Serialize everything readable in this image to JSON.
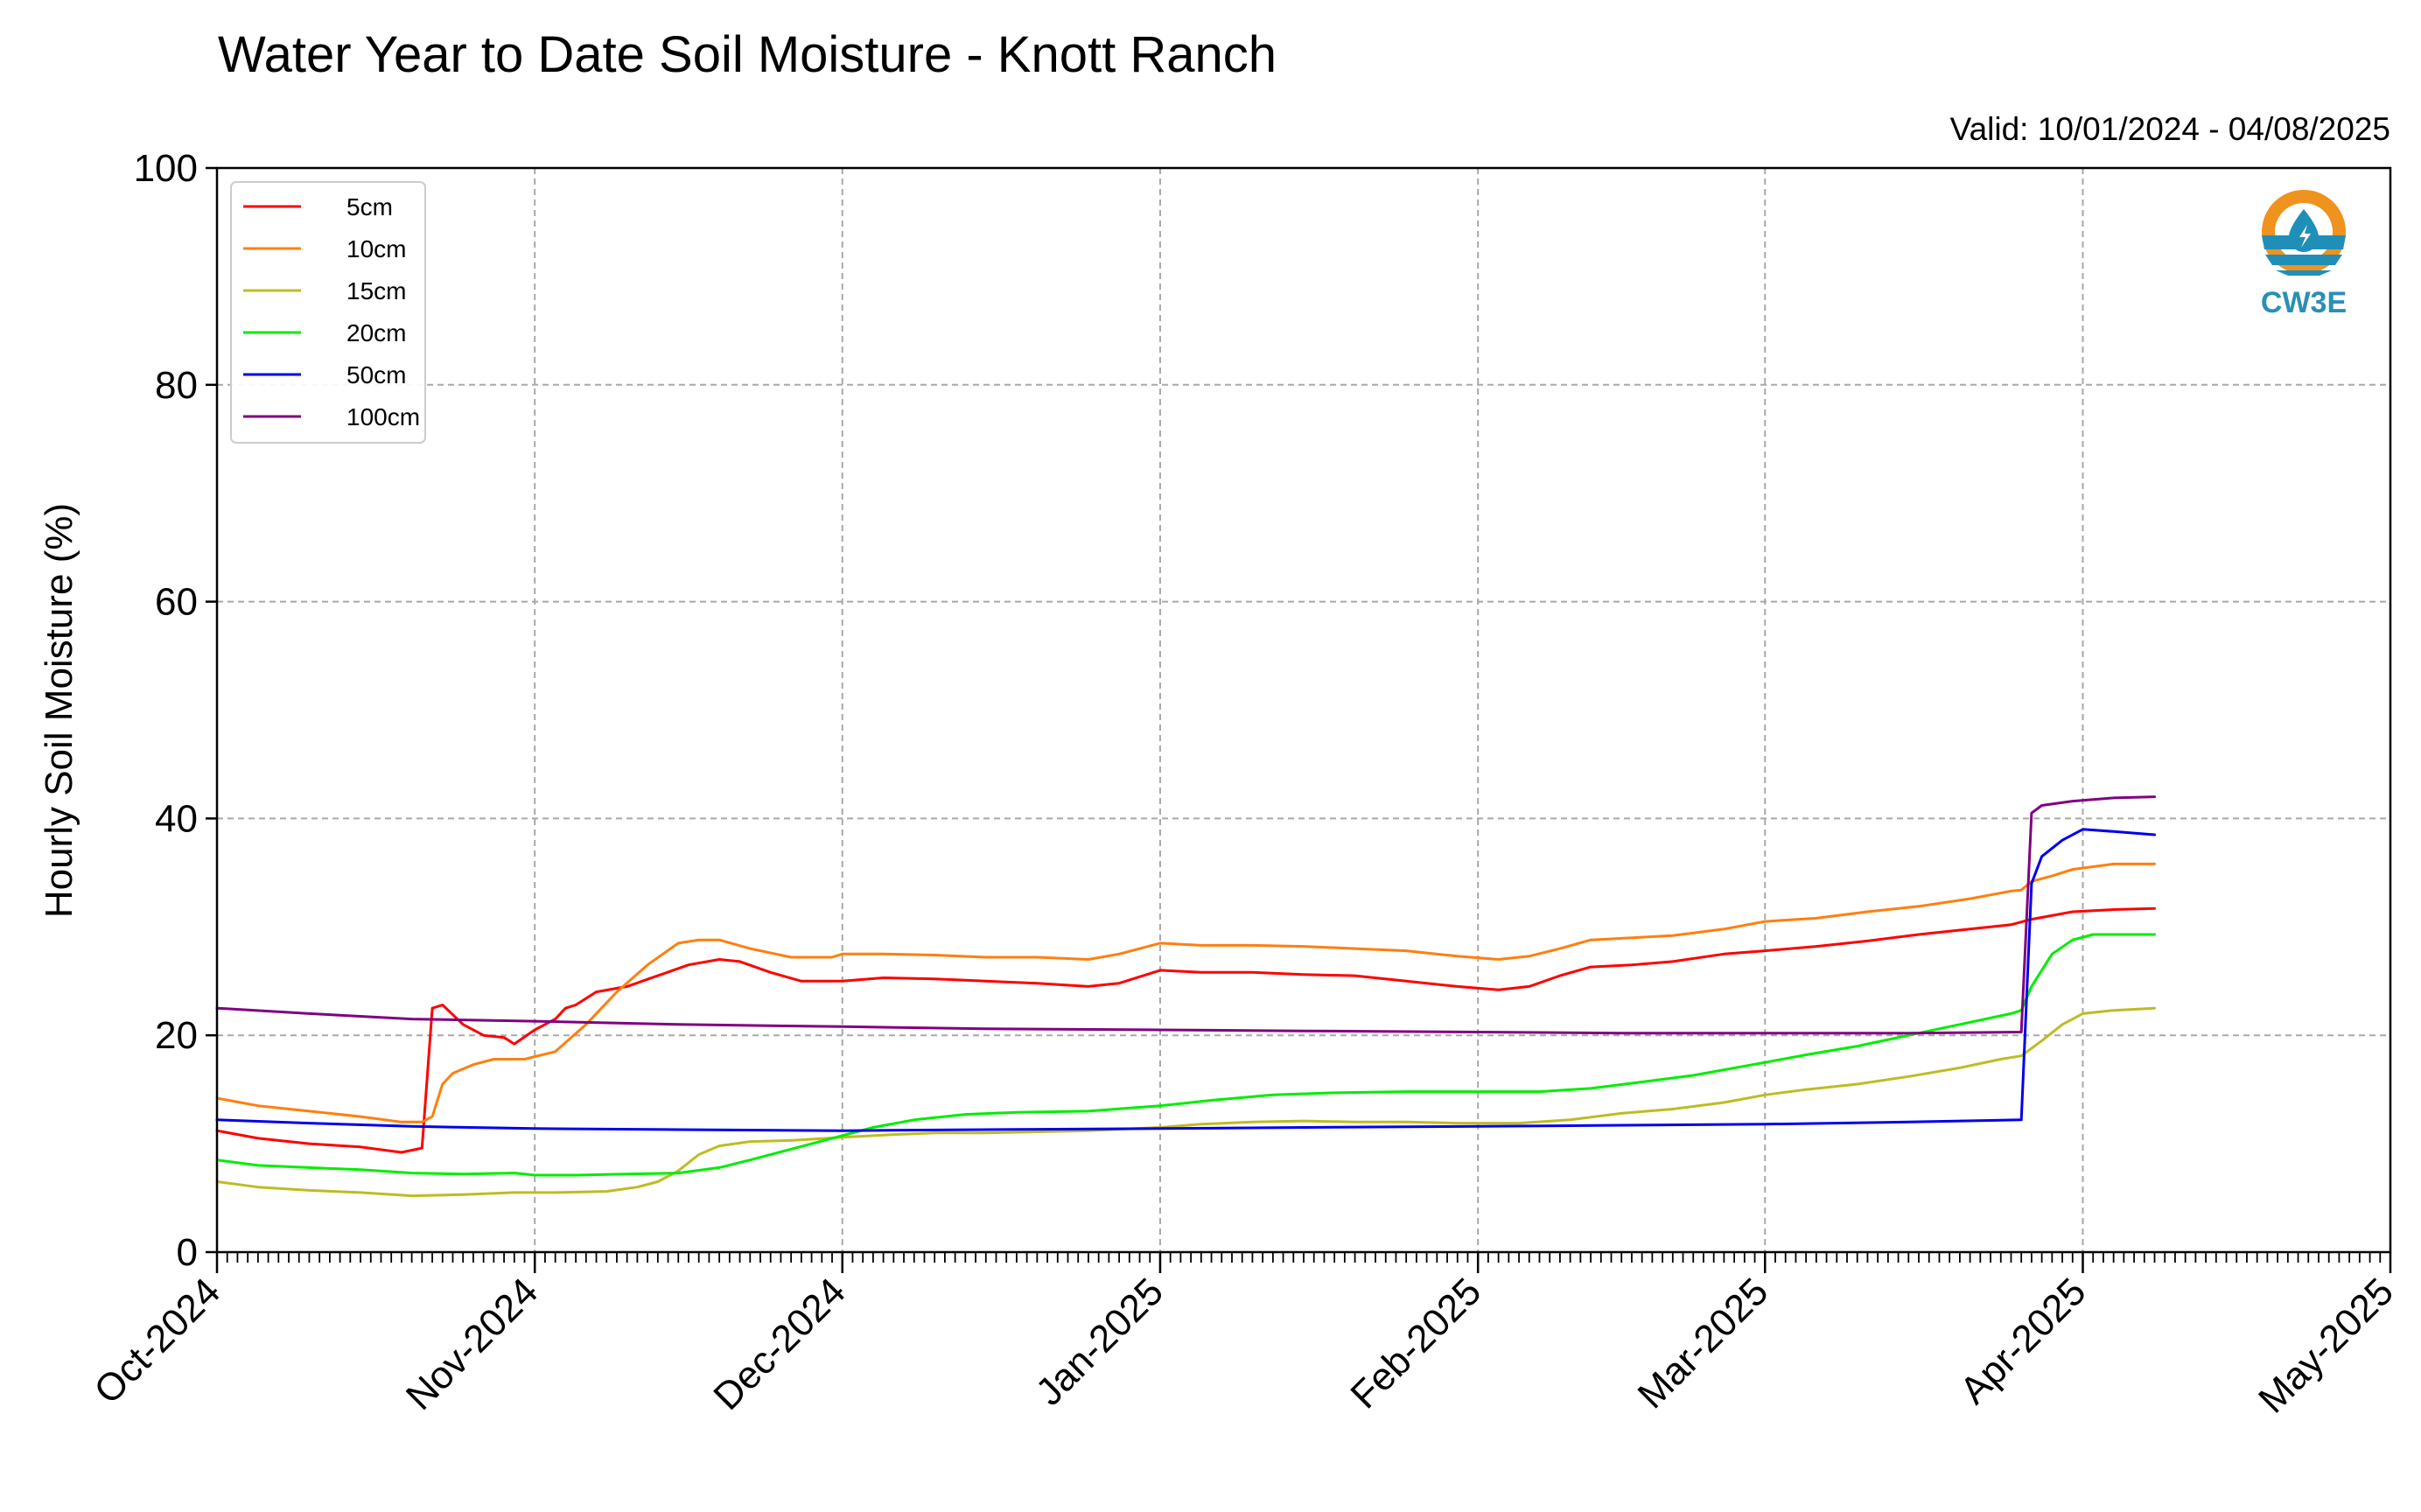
{
  "chart_data": {
    "type": "line",
    "title": "Water Year to Date Soil Moisture - Knott Ranch",
    "subtitle": "Valid: 10/01/2024 - 04/08/2025",
    "ylabel": "Hourly Soil Moisture (%)",
    "xlabel": "",
    "ylim": [
      0,
      100
    ],
    "yticks": [
      0,
      20,
      40,
      60,
      80,
      100
    ],
    "xlim": [
      "2024-10-01",
      "2025-05-01"
    ],
    "xticks": [
      "2024-10-01",
      "2024-11-01",
      "2024-12-01",
      "2025-01-01",
      "2025-02-01",
      "2025-03-01",
      "2025-04-01",
      "2025-05-01"
    ],
    "xtick_labels": [
      "Oct-2024",
      "Nov-2024",
      "Dec-2024",
      "Jan-2025",
      "Feb-2025",
      "Mar-2025",
      "Apr-2025",
      "May-2025"
    ],
    "grid": true,
    "legend_position": "top-left",
    "logo_text": "CW3E",
    "series": [
      {
        "name": "5cm",
        "color": "#ff0000",
        "points": [
          [
            "2024-10-01",
            11.2
          ],
          [
            "2024-10-05",
            10.5
          ],
          [
            "2024-10-10",
            10.0
          ],
          [
            "2024-10-15",
            9.7
          ],
          [
            "2024-10-19",
            9.2
          ],
          [
            "2024-10-21",
            9.6
          ],
          [
            "2024-10-22",
            22.5
          ],
          [
            "2024-10-23",
            22.8
          ],
          [
            "2024-10-25",
            21.0
          ],
          [
            "2024-10-27",
            20.0
          ],
          [
            "2024-10-29",
            19.8
          ],
          [
            "2024-10-30",
            19.2
          ],
          [
            "2024-11-01",
            20.5
          ],
          [
            "2024-11-03",
            21.5
          ],
          [
            "2024-11-04",
            22.5
          ],
          [
            "2024-11-05",
            22.8
          ],
          [
            "2024-11-07",
            24.0
          ],
          [
            "2024-11-10",
            24.5
          ],
          [
            "2024-11-13",
            25.5
          ],
          [
            "2024-11-16",
            26.5
          ],
          [
            "2024-11-19",
            27.0
          ],
          [
            "2024-11-21",
            26.8
          ],
          [
            "2024-11-24",
            25.8
          ],
          [
            "2024-11-27",
            25.0
          ],
          [
            "2024-12-01",
            25.0
          ],
          [
            "2024-12-05",
            25.3
          ],
          [
            "2024-12-10",
            25.2
          ],
          [
            "2024-12-15",
            25.0
          ],
          [
            "2024-12-20",
            24.8
          ],
          [
            "2024-12-25",
            24.5
          ],
          [
            "2024-12-28",
            24.8
          ],
          [
            "2025-01-01",
            26.0
          ],
          [
            "2025-01-05",
            25.8
          ],
          [
            "2025-01-10",
            25.8
          ],
          [
            "2025-01-15",
            25.6
          ],
          [
            "2025-01-20",
            25.5
          ],
          [
            "2025-01-25",
            25.0
          ],
          [
            "2025-01-30",
            24.5
          ],
          [
            "2025-02-03",
            24.2
          ],
          [
            "2025-02-06",
            24.5
          ],
          [
            "2025-02-09",
            25.5
          ],
          [
            "2025-02-12",
            26.3
          ],
          [
            "2025-02-16",
            26.5
          ],
          [
            "2025-02-20",
            26.8
          ],
          [
            "2025-02-25",
            27.5
          ],
          [
            "2025-03-01",
            27.8
          ],
          [
            "2025-03-06",
            28.2
          ],
          [
            "2025-03-11",
            28.7
          ],
          [
            "2025-03-16",
            29.3
          ],
          [
            "2025-03-21",
            29.8
          ],
          [
            "2025-03-25",
            30.2
          ],
          [
            "2025-03-27",
            30.7
          ],
          [
            "2025-03-31",
            31.4
          ],
          [
            "2025-04-04",
            31.6
          ],
          [
            "2025-04-08",
            31.7
          ]
        ]
      },
      {
        "name": "10cm",
        "color": "#ff7f0e",
        "points": [
          [
            "2024-10-01",
            14.2
          ],
          [
            "2024-10-05",
            13.5
          ],
          [
            "2024-10-10",
            13.0
          ],
          [
            "2024-10-15",
            12.5
          ],
          [
            "2024-10-19",
            12.0
          ],
          [
            "2024-10-21",
            12.0
          ],
          [
            "2024-10-22",
            12.5
          ],
          [
            "2024-10-23",
            15.5
          ],
          [
            "2024-10-24",
            16.5
          ],
          [
            "2024-10-26",
            17.3
          ],
          [
            "2024-10-28",
            17.8
          ],
          [
            "2024-10-31",
            17.8
          ],
          [
            "2024-11-03",
            18.5
          ],
          [
            "2024-11-06",
            21.0
          ],
          [
            "2024-11-09",
            24.0
          ],
          [
            "2024-11-12",
            26.5
          ],
          [
            "2024-11-15",
            28.5
          ],
          [
            "2024-11-17",
            28.8
          ],
          [
            "2024-11-19",
            28.8
          ],
          [
            "2024-11-22",
            28.0
          ],
          [
            "2024-11-26",
            27.2
          ],
          [
            "2024-11-30",
            27.2
          ],
          [
            "2024-12-01",
            27.5
          ],
          [
            "2024-12-05",
            27.5
          ],
          [
            "2024-12-10",
            27.4
          ],
          [
            "2024-12-15",
            27.2
          ],
          [
            "2024-12-20",
            27.2
          ],
          [
            "2024-12-25",
            27.0
          ],
          [
            "2024-12-28",
            27.5
          ],
          [
            "2025-01-01",
            28.5
          ],
          [
            "2025-01-05",
            28.3
          ],
          [
            "2025-01-10",
            28.3
          ],
          [
            "2025-01-15",
            28.2
          ],
          [
            "2025-01-20",
            28.0
          ],
          [
            "2025-01-25",
            27.8
          ],
          [
            "2025-01-30",
            27.3
          ],
          [
            "2025-02-03",
            27.0
          ],
          [
            "2025-02-06",
            27.3
          ],
          [
            "2025-02-09",
            28.0
          ],
          [
            "2025-02-12",
            28.8
          ],
          [
            "2025-02-16",
            29.0
          ],
          [
            "2025-02-20",
            29.2
          ],
          [
            "2025-02-25",
            29.8
          ],
          [
            "2025-03-01",
            30.5
          ],
          [
            "2025-03-06",
            30.8
          ],
          [
            "2025-03-11",
            31.4
          ],
          [
            "2025-03-16",
            31.9
          ],
          [
            "2025-03-21",
            32.6
          ],
          [
            "2025-03-25",
            33.3
          ],
          [
            "2025-03-26",
            33.4
          ],
          [
            "2025-03-27",
            34.2
          ],
          [
            "2025-03-29",
            34.7
          ],
          [
            "2025-03-31",
            35.3
          ],
          [
            "2025-04-04",
            35.8
          ],
          [
            "2025-04-08",
            35.8
          ]
        ]
      },
      {
        "name": "15cm",
        "color": "#bcbd22",
        "points": [
          [
            "2024-10-01",
            6.5
          ],
          [
            "2024-10-05",
            6.0
          ],
          [
            "2024-10-10",
            5.7
          ],
          [
            "2024-10-15",
            5.5
          ],
          [
            "2024-10-20",
            5.2
          ],
          [
            "2024-10-25",
            5.3
          ],
          [
            "2024-10-30",
            5.5
          ],
          [
            "2024-11-03",
            5.5
          ],
          [
            "2024-11-08",
            5.6
          ],
          [
            "2024-11-11",
            6.0
          ],
          [
            "2024-11-13",
            6.5
          ],
          [
            "2024-11-15",
            7.5
          ],
          [
            "2024-11-17",
            9.0
          ],
          [
            "2024-11-19",
            9.8
          ],
          [
            "2024-11-22",
            10.2
          ],
          [
            "2024-11-26",
            10.3
          ],
          [
            "2024-12-01",
            10.6
          ],
          [
            "2024-12-05",
            10.8
          ],
          [
            "2024-12-10",
            11.0
          ],
          [
            "2024-12-15",
            11.0
          ],
          [
            "2024-12-20",
            11.1
          ],
          [
            "2024-12-25",
            11.2
          ],
          [
            "2025-01-01",
            11.5
          ],
          [
            "2025-01-05",
            11.8
          ],
          [
            "2025-01-10",
            12.0
          ],
          [
            "2025-01-15",
            12.1
          ],
          [
            "2025-01-20",
            12.0
          ],
          [
            "2025-01-25",
            12.0
          ],
          [
            "2025-01-30",
            11.9
          ],
          [
            "2025-02-05",
            11.9
          ],
          [
            "2025-02-10",
            12.2
          ],
          [
            "2025-02-15",
            12.8
          ],
          [
            "2025-02-20",
            13.2
          ],
          [
            "2025-02-25",
            13.8
          ],
          [
            "2025-03-01",
            14.5
          ],
          [
            "2025-03-05",
            15.0
          ],
          [
            "2025-03-10",
            15.5
          ],
          [
            "2025-03-15",
            16.2
          ],
          [
            "2025-03-20",
            17.0
          ],
          [
            "2025-03-24",
            17.8
          ],
          [
            "2025-03-26",
            18.1
          ],
          [
            "2025-03-28",
            19.5
          ],
          [
            "2025-03-30",
            21.0
          ],
          [
            "2025-04-01",
            22.0
          ],
          [
            "2025-04-04",
            22.3
          ],
          [
            "2025-04-08",
            22.5
          ]
        ]
      },
      {
        "name": "20cm",
        "color": "#00ee00",
        "points": [
          [
            "2024-10-01",
            8.5
          ],
          [
            "2024-10-05",
            8.0
          ],
          [
            "2024-10-10",
            7.8
          ],
          [
            "2024-10-15",
            7.6
          ],
          [
            "2024-10-20",
            7.3
          ],
          [
            "2024-10-25",
            7.2
          ],
          [
            "2024-10-30",
            7.3
          ],
          [
            "2024-11-01",
            7.1
          ],
          [
            "2024-11-05",
            7.1
          ],
          [
            "2024-11-10",
            7.2
          ],
          [
            "2024-11-15",
            7.3
          ],
          [
            "2024-11-19",
            7.8
          ],
          [
            "2024-11-22",
            8.5
          ],
          [
            "2024-11-26",
            9.5
          ],
          [
            "2024-11-30",
            10.5
          ],
          [
            "2024-12-04",
            11.5
          ],
          [
            "2024-12-08",
            12.2
          ],
          [
            "2024-12-13",
            12.7
          ],
          [
            "2024-12-18",
            12.9
          ],
          [
            "2024-12-25",
            13.0
          ],
          [
            "2025-01-01",
            13.5
          ],
          [
            "2025-01-06",
            14.0
          ],
          [
            "2025-01-12",
            14.5
          ],
          [
            "2025-01-18",
            14.7
          ],
          [
            "2025-01-25",
            14.8
          ],
          [
            "2025-02-01",
            14.8
          ],
          [
            "2025-02-07",
            14.8
          ],
          [
            "2025-02-12",
            15.1
          ],
          [
            "2025-02-17",
            15.7
          ],
          [
            "2025-02-22",
            16.3
          ],
          [
            "2025-03-01",
            17.5
          ],
          [
            "2025-03-05",
            18.2
          ],
          [
            "2025-03-10",
            19.0
          ],
          [
            "2025-03-15",
            20.0
          ],
          [
            "2025-03-20",
            21.0
          ],
          [
            "2025-03-25",
            22.0
          ],
          [
            "2025-03-26",
            22.3
          ],
          [
            "2025-03-27",
            24.5
          ],
          [
            "2025-03-29",
            27.5
          ],
          [
            "2025-03-31",
            28.8
          ],
          [
            "2025-04-02",
            29.3
          ],
          [
            "2025-04-08",
            29.3
          ]
        ]
      },
      {
        "name": "50cm",
        "color": "#0000ee",
        "points": [
          [
            "2024-10-01",
            12.2
          ],
          [
            "2024-10-10",
            11.9
          ],
          [
            "2024-10-20",
            11.6
          ],
          [
            "2024-11-01",
            11.4
          ],
          [
            "2024-11-15",
            11.3
          ],
          [
            "2024-12-01",
            11.2
          ],
          [
            "2024-12-15",
            11.3
          ],
          [
            "2025-01-01",
            11.4
          ],
          [
            "2025-01-15",
            11.5
          ],
          [
            "2025-02-01",
            11.6
          ],
          [
            "2025-02-15",
            11.7
          ],
          [
            "2025-03-01",
            11.8
          ],
          [
            "2025-03-15",
            12.0
          ],
          [
            "2025-03-26",
            12.2
          ],
          [
            "2025-03-27",
            34.0
          ],
          [
            "2025-03-28",
            36.5
          ],
          [
            "2025-03-30",
            38.0
          ],
          [
            "2025-04-01",
            39.0
          ],
          [
            "2025-04-04",
            38.8
          ],
          [
            "2025-04-08",
            38.5
          ]
        ]
      },
      {
        "name": "100cm",
        "color": "#800080",
        "points": [
          [
            "2024-10-01",
            22.5
          ],
          [
            "2024-10-10",
            22.0
          ],
          [
            "2024-10-20",
            21.5
          ],
          [
            "2024-11-01",
            21.3
          ],
          [
            "2024-11-15",
            21.0
          ],
          [
            "2024-12-01",
            20.8
          ],
          [
            "2024-12-15",
            20.6
          ],
          [
            "2025-01-01",
            20.5
          ],
          [
            "2025-01-15",
            20.4
          ],
          [
            "2025-02-01",
            20.3
          ],
          [
            "2025-02-15",
            20.2
          ],
          [
            "2025-03-01",
            20.2
          ],
          [
            "2025-03-15",
            20.2
          ],
          [
            "2025-03-26",
            20.3
          ],
          [
            "2025-03-27",
            40.5
          ],
          [
            "2025-03-28",
            41.2
          ],
          [
            "2025-03-31",
            41.6
          ],
          [
            "2025-04-04",
            41.9
          ],
          [
            "2025-04-08",
            42.0
          ]
        ]
      }
    ]
  }
}
